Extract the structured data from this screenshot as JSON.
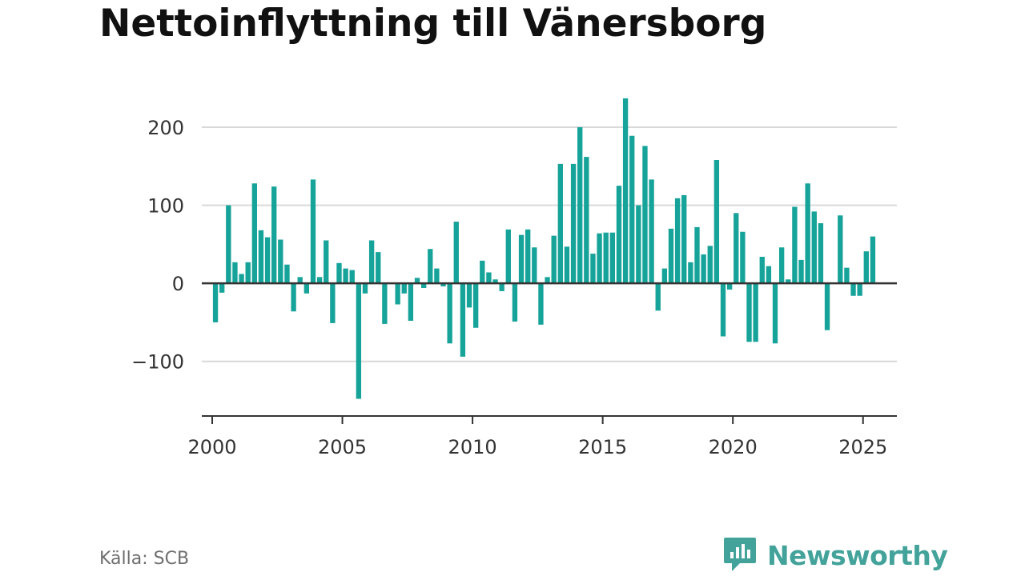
{
  "title": "Nettoinflyttning till Vänersborg",
  "source": "Källa: SCB",
  "brand": {
    "name": "Newsworthy",
    "color": "#43a39a"
  },
  "chart_data": {
    "type": "bar",
    "title": "Nettoinflyttning till Vänersborg",
    "xlabel": "",
    "ylabel": "",
    "bar_color": "#16a399",
    "grid": true,
    "xlim": [
      1999.6,
      2026.3
    ],
    "ylim": [
      -170,
      240
    ],
    "x_ticks": [
      2000,
      2005,
      2010,
      2015,
      2020,
      2025
    ],
    "x_tick_labels": [
      "2000",
      "2005",
      "2010",
      "2015",
      "2020",
      "2025"
    ],
    "y_ticks": [
      200,
      100,
      0,
      -100
    ],
    "y_tick_labels": [
      "200",
      "100",
      "0",
      "−100"
    ],
    "series": [
      {
        "values": [
          {
            "x": 2000.125,
            "y": -50
          },
          {
            "x": 2000.375,
            "y": -12
          },
          {
            "x": 2000.625,
            "y": 100
          },
          {
            "x": 2000.875,
            "y": 27
          },
          {
            "x": 2001.125,
            "y": 12
          },
          {
            "x": 2001.375,
            "y": 27
          },
          {
            "x": 2001.625,
            "y": 128
          },
          {
            "x": 2001.875,
            "y": 68
          },
          {
            "x": 2002.125,
            "y": 59
          },
          {
            "x": 2002.375,
            "y": 124
          },
          {
            "x": 2002.625,
            "y": 56
          },
          {
            "x": 2002.875,
            "y": 24
          },
          {
            "x": 2003.125,
            "y": -36
          },
          {
            "x": 2003.375,
            "y": 8
          },
          {
            "x": 2003.625,
            "y": -13
          },
          {
            "x": 2003.875,
            "y": 133
          },
          {
            "x": 2004.125,
            "y": 8
          },
          {
            "x": 2004.375,
            "y": 55
          },
          {
            "x": 2004.625,
            "y": -51
          },
          {
            "x": 2004.875,
            "y": 26
          },
          {
            "x": 2005.125,
            "y": 19
          },
          {
            "x": 2005.375,
            "y": 17
          },
          {
            "x": 2005.625,
            "y": -148
          },
          {
            "x": 2005.875,
            "y": -13
          },
          {
            "x": 2006.125,
            "y": 55
          },
          {
            "x": 2006.375,
            "y": 40
          },
          {
            "x": 2006.625,
            "y": -52
          },
          {
            "x": 2006.875,
            "y": 0
          },
          {
            "x": 2007.125,
            "y": -27
          },
          {
            "x": 2007.375,
            "y": -13
          },
          {
            "x": 2007.625,
            "y": -48
          },
          {
            "x": 2007.875,
            "y": 7
          },
          {
            "x": 2008.125,
            "y": -6
          },
          {
            "x": 2008.375,
            "y": 44
          },
          {
            "x": 2008.625,
            "y": 19
          },
          {
            "x": 2008.875,
            "y": -4
          },
          {
            "x": 2009.125,
            "y": -77
          },
          {
            "x": 2009.375,
            "y": 79
          },
          {
            "x": 2009.625,
            "y": -94
          },
          {
            "x": 2009.875,
            "y": -31
          },
          {
            "x": 2010.125,
            "y": -57
          },
          {
            "x": 2010.375,
            "y": 29
          },
          {
            "x": 2010.625,
            "y": 14
          },
          {
            "x": 2010.875,
            "y": 5
          },
          {
            "x": 2011.125,
            "y": -10
          },
          {
            "x": 2011.375,
            "y": 69
          },
          {
            "x": 2011.625,
            "y": -49
          },
          {
            "x": 2011.875,
            "y": 62
          },
          {
            "x": 2012.125,
            "y": 69
          },
          {
            "x": 2012.375,
            "y": 46
          },
          {
            "x": 2012.625,
            "y": -53
          },
          {
            "x": 2012.875,
            "y": 8
          },
          {
            "x": 2013.125,
            "y": 61
          },
          {
            "x": 2013.375,
            "y": 153
          },
          {
            "x": 2013.625,
            "y": 47
          },
          {
            "x": 2013.875,
            "y": 153
          },
          {
            "x": 2014.125,
            "y": 200
          },
          {
            "x": 2014.375,
            "y": 162
          },
          {
            "x": 2014.625,
            "y": 38
          },
          {
            "x": 2014.875,
            "y": 64
          },
          {
            "x": 2015.125,
            "y": 65
          },
          {
            "x": 2015.375,
            "y": 65
          },
          {
            "x": 2015.625,
            "y": 125
          },
          {
            "x": 2015.875,
            "y": 237
          },
          {
            "x": 2016.125,
            "y": 189
          },
          {
            "x": 2016.375,
            "y": 100
          },
          {
            "x": 2016.625,
            "y": 176
          },
          {
            "x": 2016.875,
            "y": 133
          },
          {
            "x": 2017.125,
            "y": -35
          },
          {
            "x": 2017.375,
            "y": 19
          },
          {
            "x": 2017.625,
            "y": 70
          },
          {
            "x": 2017.875,
            "y": 109
          },
          {
            "x": 2018.125,
            "y": 113
          },
          {
            "x": 2018.375,
            "y": 27
          },
          {
            "x": 2018.625,
            "y": 72
          },
          {
            "x": 2018.875,
            "y": 37
          },
          {
            "x": 2019.125,
            "y": 48
          },
          {
            "x": 2019.375,
            "y": 158
          },
          {
            "x": 2019.625,
            "y": -68
          },
          {
            "x": 2019.875,
            "y": -8
          },
          {
            "x": 2020.125,
            "y": 90
          },
          {
            "x": 2020.375,
            "y": 66
          },
          {
            "x": 2020.625,
            "y": -75
          },
          {
            "x": 2020.875,
            "y": -75
          },
          {
            "x": 2021.125,
            "y": 34
          },
          {
            "x": 2021.375,
            "y": 22
          },
          {
            "x": 2021.625,
            "y": -77
          },
          {
            "x": 2021.875,
            "y": 46
          },
          {
            "x": 2022.125,
            "y": 5
          },
          {
            "x": 2022.375,
            "y": 98
          },
          {
            "x": 2022.625,
            "y": 30
          },
          {
            "x": 2022.875,
            "y": 128
          },
          {
            "x": 2023.125,
            "y": 92
          },
          {
            "x": 2023.375,
            "y": 77
          },
          {
            "x": 2023.625,
            "y": -60
          },
          {
            "x": 2023.875,
            "y": 0
          },
          {
            "x": 2024.125,
            "y": 87
          },
          {
            "x": 2024.375,
            "y": 20
          },
          {
            "x": 2024.625,
            "y": -16
          },
          {
            "x": 2024.875,
            "y": -16
          },
          {
            "x": 2025.125,
            "y": 41
          },
          {
            "x": 2025.375,
            "y": 60
          }
        ]
      }
    ]
  }
}
